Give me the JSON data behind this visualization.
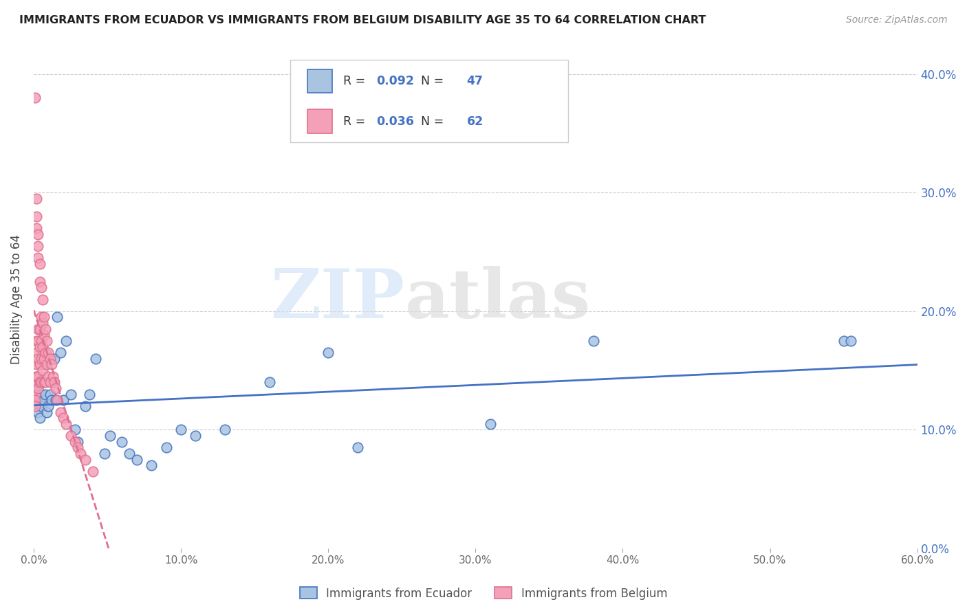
{
  "title": "IMMIGRANTS FROM ECUADOR VS IMMIGRANTS FROM BELGIUM DISABILITY AGE 35 TO 64 CORRELATION CHART",
  "source": "Source: ZipAtlas.com",
  "ylabel": "Disability Age 35 to 64",
  "xlim": [
    0.0,
    0.6
  ],
  "ylim": [
    0.0,
    0.42
  ],
  "xticks": [
    0.0,
    0.1,
    0.2,
    0.3,
    0.4,
    0.5,
    0.6
  ],
  "yticks": [
    0.0,
    0.1,
    0.2,
    0.3,
    0.4
  ],
  "xtick_labels": [
    "0.0%",
    "10.0%",
    "20.0%",
    "30.0%",
    "40.0%",
    "50.0%",
    "60.0%"
  ],
  "ytick_labels_right": [
    "0.0%",
    "10.0%",
    "20.0%",
    "30.0%",
    "40.0%"
  ],
  "legend_labels": [
    "Immigrants from Ecuador",
    "Immigrants from Belgium"
  ],
  "ecuador_color": "#a8c4e0",
  "belgium_color": "#f4a0b8",
  "ecuador_line_color": "#4472c4",
  "belgium_line_color": "#e07090",
  "ecuador_R": 0.092,
  "ecuador_N": 47,
  "belgium_R": 0.036,
  "belgium_N": 62,
  "watermark_zip": "ZIP",
  "watermark_atlas": "atlas",
  "ecuador_scatter_x": [
    0.001,
    0.002,
    0.002,
    0.003,
    0.003,
    0.004,
    0.004,
    0.005,
    0.005,
    0.006,
    0.007,
    0.007,
    0.008,
    0.009,
    0.01,
    0.011,
    0.012,
    0.013,
    0.014,
    0.015,
    0.016,
    0.018,
    0.02,
    0.022,
    0.025,
    0.028,
    0.03,
    0.035,
    0.038,
    0.042,
    0.048,
    0.052,
    0.06,
    0.065,
    0.07,
    0.08,
    0.09,
    0.1,
    0.11,
    0.13,
    0.16,
    0.2,
    0.22,
    0.31,
    0.38,
    0.55,
    0.555
  ],
  "ecuador_scatter_y": [
    0.13,
    0.145,
    0.12,
    0.135,
    0.115,
    0.125,
    0.11,
    0.12,
    0.13,
    0.14,
    0.155,
    0.125,
    0.13,
    0.115,
    0.12,
    0.13,
    0.125,
    0.14,
    0.16,
    0.125,
    0.195,
    0.165,
    0.125,
    0.175,
    0.13,
    0.1,
    0.09,
    0.12,
    0.13,
    0.16,
    0.08,
    0.095,
    0.09,
    0.08,
    0.075,
    0.07,
    0.085,
    0.1,
    0.095,
    0.1,
    0.14,
    0.165,
    0.085,
    0.105,
    0.175,
    0.175,
    0.175
  ],
  "belgium_scatter_x": [
    0.001,
    0.001,
    0.001,
    0.001,
    0.001,
    0.002,
    0.002,
    0.002,
    0.002,
    0.002,
    0.002,
    0.002,
    0.003,
    0.003,
    0.003,
    0.003,
    0.003,
    0.003,
    0.003,
    0.003,
    0.004,
    0.004,
    0.004,
    0.004,
    0.004,
    0.004,
    0.005,
    0.005,
    0.005,
    0.005,
    0.005,
    0.006,
    0.006,
    0.006,
    0.006,
    0.007,
    0.007,
    0.007,
    0.007,
    0.008,
    0.008,
    0.008,
    0.009,
    0.009,
    0.01,
    0.01,
    0.011,
    0.011,
    0.012,
    0.013,
    0.014,
    0.015,
    0.016,
    0.018,
    0.02,
    0.022,
    0.025,
    0.028,
    0.03,
    0.032,
    0.035,
    0.04
  ],
  "belgium_scatter_y": [
    0.38,
    0.14,
    0.13,
    0.125,
    0.12,
    0.295,
    0.28,
    0.27,
    0.175,
    0.165,
    0.155,
    0.145,
    0.265,
    0.255,
    0.245,
    0.185,
    0.175,
    0.16,
    0.145,
    0.135,
    0.24,
    0.225,
    0.185,
    0.17,
    0.155,
    0.14,
    0.22,
    0.195,
    0.175,
    0.16,
    0.14,
    0.21,
    0.19,
    0.17,
    0.15,
    0.195,
    0.18,
    0.16,
    0.14,
    0.185,
    0.165,
    0.14,
    0.175,
    0.155,
    0.165,
    0.145,
    0.16,
    0.14,
    0.155,
    0.145,
    0.14,
    0.135,
    0.125,
    0.115,
    0.11,
    0.105,
    0.095,
    0.09,
    0.085,
    0.08,
    0.075,
    0.065
  ]
}
